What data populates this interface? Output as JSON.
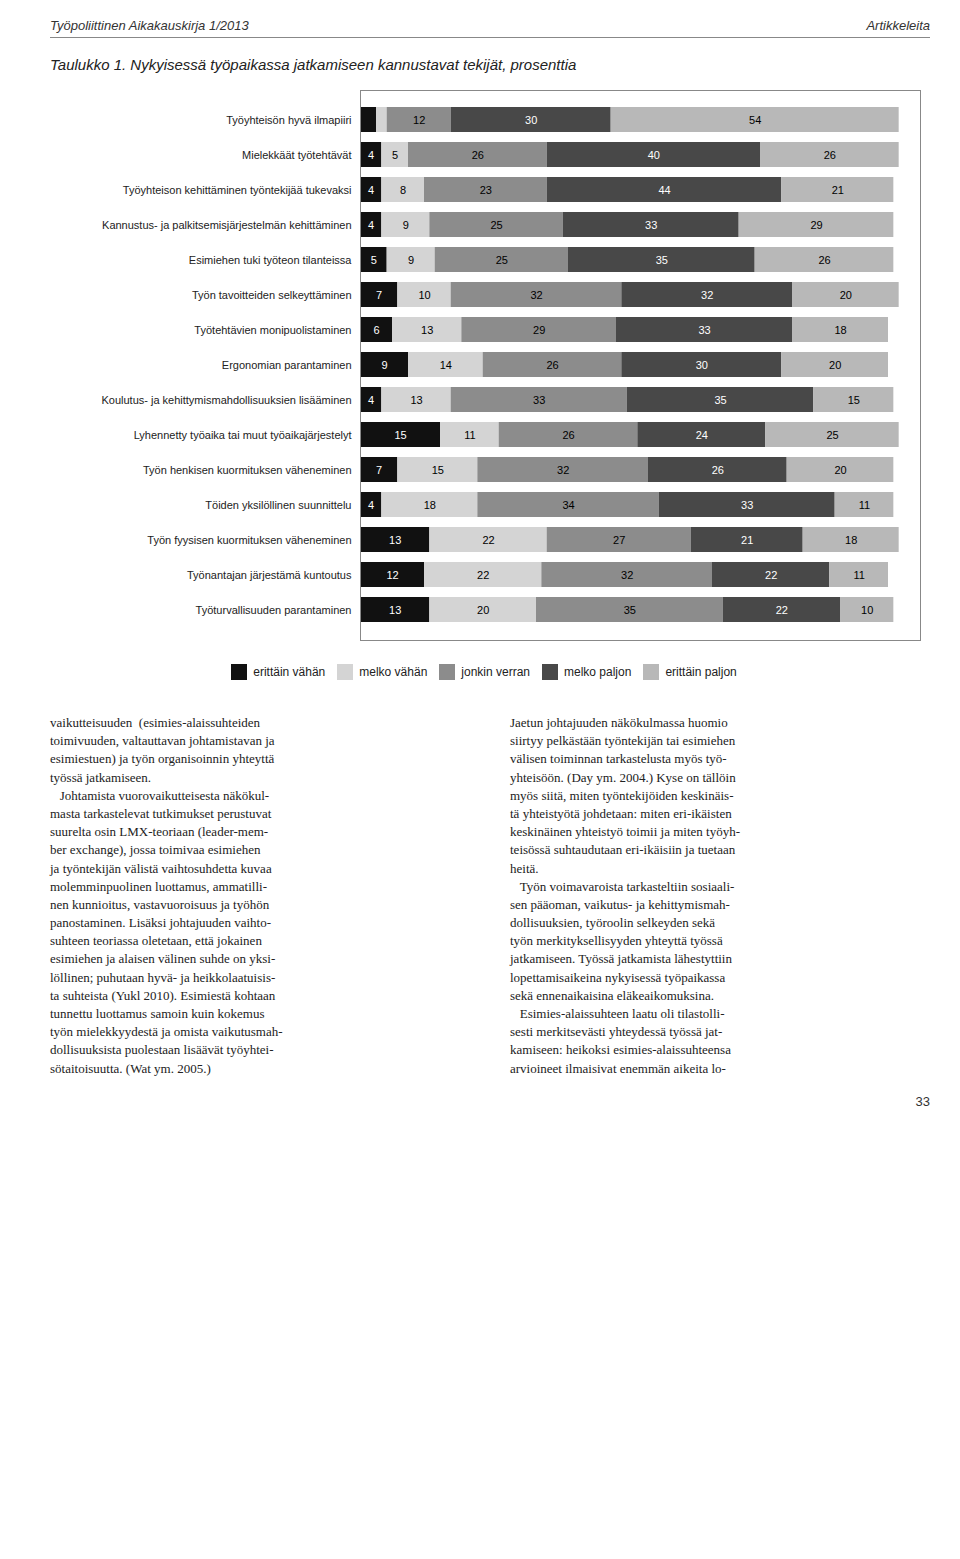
{
  "chart_data": {
    "type": "bar",
    "orientation": "horizontal",
    "stacked": true,
    "title": "Taulukko 1. Nykyisessä työpaikassa jatkamiseen kannustavat tekijät, prosenttia",
    "categories": [
      "Työyhteisön hyvä ilmapiiri",
      "Mielekkäät työtehtävät",
      "Työyhteison kehittäminen työntekijää tukevaksi",
      "Kannustus- ja palkitsemisjärjestelmän kehittäminen",
      "Esimiehen tuki työteon tilanteissa",
      "Työn tavoitteiden selkeyttäminen",
      "Työtehtävien monipuolistaminen",
      "Ergonomian parantaminen",
      "Koulutus- ja kehittymismahdollisuuksien lisääminen",
      "Lyhennetty työaika tai muut työaikajärjestelyt",
      "Työn henkisen kuormituksen väheneminen",
      "Töiden yksilöllinen suunnittelu",
      "Työn fyysisen kuormituksen väheneminen",
      "Työnantajan järjestämä kuntoutus",
      "Työturvallisuuden parantaminen"
    ],
    "series": [
      {
        "name": "erittäin vähän",
        "color": "#111111",
        "values": [
          3,
          4,
          4,
          4,
          5,
          7,
          6,
          9,
          4,
          15,
          7,
          4,
          13,
          12,
          13
        ],
        "value_labels": [
          null,
          "4",
          "4",
          "4",
          "5",
          "7",
          "6",
          "9",
          "4",
          "15",
          "7",
          "4",
          "13",
          "12",
          "13"
        ]
      },
      {
        "name": "melko vähän",
        "color": "#d4d4d4",
        "values": [
          2,
          5,
          8,
          9,
          9,
          10,
          13,
          14,
          13,
          11,
          15,
          18,
          22,
          22,
          20
        ],
        "value_labels": [
          null,
          "5",
          "8",
          "9",
          "9",
          "10",
          "13",
          "14",
          "13",
          "11",
          "15",
          "18",
          "22",
          "22",
          "20"
        ]
      },
      {
        "name": "jonkin verran",
        "color": "#8c8c8c",
        "values": [
          12,
          26,
          23,
          25,
          25,
          32,
          29,
          26,
          33,
          26,
          32,
          34,
          27,
          32,
          35
        ],
        "value_labels": [
          "12",
          "26",
          "23",
          "25",
          "25",
          "32",
          "29",
          "26",
          "33",
          "26",
          "32",
          "34",
          "27",
          "32",
          "35"
        ]
      },
      {
        "name": "melko paljon",
        "color": "#484848",
        "values": [
          30,
          40,
          44,
          33,
          35,
          32,
          33,
          30,
          35,
          24,
          26,
          33,
          21,
          22,
          22
        ],
        "value_labels": [
          "30",
          "40",
          "44",
          "33",
          "35",
          "32",
          "33",
          "30",
          "35",
          "24",
          "26",
          "33",
          "21",
          "22",
          "22"
        ]
      },
      {
        "name": "erittäin paljon",
        "color": "#b8b8b8",
        "values": [
          54,
          26,
          21,
          29,
          26,
          20,
          18,
          20,
          15,
          25,
          20,
          11,
          18,
          11,
          10
        ],
        "value_labels": [
          "54",
          "26",
          "21",
          "29",
          "26",
          "20",
          "18",
          "20",
          "15",
          "25",
          "20",
          "11",
          "18",
          "11",
          "10"
        ]
      }
    ],
    "xlim": [
      0,
      105
    ],
    "data_labels": true,
    "tick_labels": "y",
    "grid": false,
    "legend": "bottom",
    "annotations": [
      "Työpoliittinen Aikakauskirja 1/2013",
      "Artikkeleita",
      "vaikutteisuuden  (esimies-alaissuhteiden\ntoimivuuden, valtauttavan johtamistavan ja\nesimiestuen) ja työn organisoinnin yhteyttä\ntyössä jatkamiseen.\n   Johtamista vuorovaikutteisesta näkökul-\nmasta tarkastelevat tutkimukset perustuvat\nsuurelta osin LMX-teoriaan (leader-mem-\nber exchange), jossa toimivaa esimiehen\nja työntekijän välistä vaihtosuhdetta kuvaa\nmolemminpuolinen luottamus, ammatilli-\nnen kunnioitus, vastavuoroisuus ja työhön\npanostaminen. Lisäksi johtajuuden vaihto-\nsuhteen teoriassa oletetaan, että jokainen\nesimiehen ja alaisen välinen suhde on yksi-\nlöllinen; puhutaan hyvä- ja heikkolaatuisis-\nta suhteista (Yukl 2010). Esimiestä kohtaan\ntunnettu luottamus samoin kuin kokemus\ntyön mielekkyydestä ja omista vaikutusmah-\ndollisuuksista puolestaan lisäävät työyhtei-\nsötaitoisuutta. (Wat ym. 2005.)",
      "Jaetun johtajuuden näkökulmassa huomio\nsiirtyy pelkästään työntekijän tai esimiehen\nvälisen toiminnan tarkastelusta myös työ-\nyhteisöön. (Day ym. 2004.) Kyse on tällöin\nmyös siitä, miten työntekijöiden keskinäis-\ntä yhteistyötä johdetaan: miten eri-ikäisten\nkeskinäinen yhteistyö toimii ja miten työyh-\nteisössä suhtaudutaan eri-ikäisiin ja tuetaan\nheitä.\n   Työn voimavaroista tarkasteltiin sosiaali-\nsen pääoman, vaikutus- ja kehittymismah-\ndollisuuksien, työroolin selkeyden sekä\ntyön merkityksellisyyden yhteyttä työssä\njatkamiseen. Työssä jatkamista lähestyttiin\nlopettamisaikeina nykyisessä työpaikassa\nsekä ennenaikaisina eläkeaikomuksina.\n   Esimies-alaissuhteen laatu oli tilastolli-\nsesti merkitsevästi yhteydessä työssä jat-\nkamiseen: heikoksi esimies-alaissuhteensa\narvioineet ilmaisivat enemmän aikeita lo-",
      "33"
    ]
  }
}
